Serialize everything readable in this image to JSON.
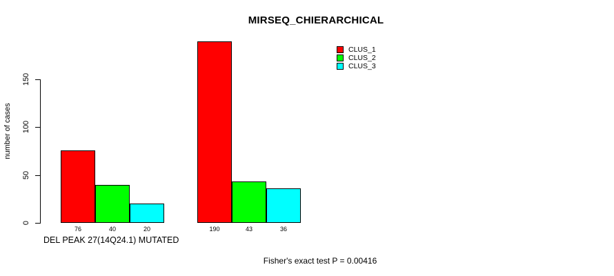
{
  "window": {
    "background": "#ffffff"
  },
  "chart_data": {
    "type": "bar",
    "title": "MIRSEQ_CHIERARCHICAL",
    "ylabel": "number of cases",
    "xlabel": "DEL PEAK 27(14Q24.1) MUTATED",
    "annotation": "Fisher's exact test P = 0.00416",
    "ylim": [
      0,
      190
    ],
    "yticks": [
      0,
      50,
      100,
      150
    ],
    "grid": false,
    "legend_position": "top-right",
    "groups_count": 2,
    "series": [
      {
        "name": "CLUS_1",
        "color": "#ff0000",
        "values": [
          76,
          190
        ]
      },
      {
        "name": "CLUS_2",
        "color": "#00ff00",
        "values": [
          40,
          43
        ]
      },
      {
        "name": "CLUS_3",
        "color": "#00ffff",
        "values": [
          20,
          36
        ]
      }
    ],
    "bar_value_labels": [
      [
        "76",
        "40",
        "20"
      ],
      [
        "190",
        "43",
        "36"
      ]
    ],
    "text_color": "#000000",
    "axis_color": "#000000"
  }
}
